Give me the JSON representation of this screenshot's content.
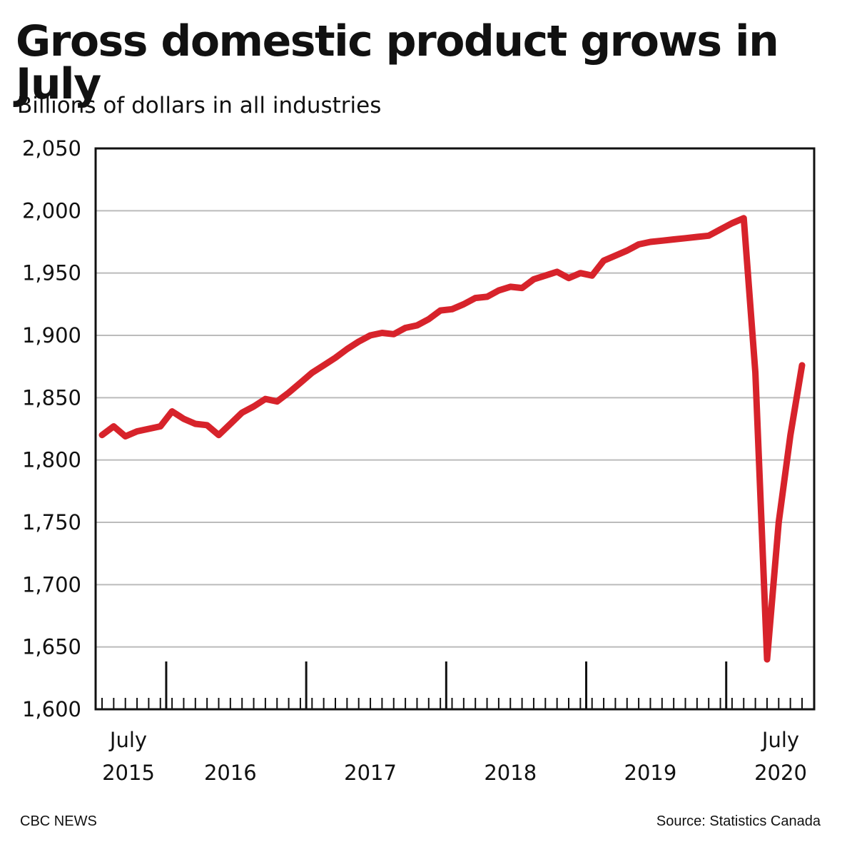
{
  "title": "Gross domestic product grows in July",
  "subtitle": "Billions of dollars in all industries",
  "footer": {
    "left": "CBC NEWS",
    "right": "Source: Statistics Canada"
  },
  "colors": {
    "line": "#d7232b",
    "grid": "#bbbbbb",
    "axis": "#111111"
  },
  "chart_data": {
    "type": "line",
    "title": "Gross domestic product grows in July",
    "ylabel": "Billions of dollars in all industries",
    "ylim": [
      1600,
      2050
    ],
    "yticks": [
      1600,
      1650,
      1700,
      1750,
      1800,
      1850,
      1900,
      1950,
      2000,
      2050
    ],
    "ytick_labels": [
      "1,600",
      "1,650",
      "1,700",
      "1,750",
      "1,800",
      "1,850",
      "1,900",
      "1,950",
      "2,000",
      "2,050"
    ],
    "grid": true,
    "x_start": "2015-07",
    "x_end": "2020-07",
    "x_tick_labels": [
      {
        "month": "2015-07",
        "line1": "July",
        "line2": "2015"
      },
      {
        "month": "2016-06",
        "line1": "",
        "line2": "2016"
      },
      {
        "month": "2017-06",
        "line1": "",
        "line2": "2017"
      },
      {
        "month": "2018-06",
        "line1": "",
        "line2": "2018"
      },
      {
        "month": "2019-06",
        "line1": "",
        "line2": "2019"
      },
      {
        "month": "2020-07",
        "line1": "July",
        "line2": "2020"
      }
    ],
    "series": [
      {
        "x": [
          "2015-07",
          "2015-08",
          "2015-09",
          "2015-10",
          "2015-11",
          "2015-12",
          "2016-01",
          "2016-02",
          "2016-03",
          "2016-04",
          "2016-05",
          "2016-06",
          "2016-07",
          "2016-08",
          "2016-09",
          "2016-10",
          "2016-11",
          "2016-12",
          "2017-01",
          "2017-02",
          "2017-03",
          "2017-04",
          "2017-05",
          "2017-06",
          "2017-07",
          "2017-08",
          "2017-09",
          "2017-10",
          "2017-11",
          "2017-12",
          "2018-01",
          "2018-02",
          "2018-03",
          "2018-04",
          "2018-05",
          "2018-06",
          "2018-07",
          "2018-08",
          "2018-09",
          "2018-10",
          "2018-11",
          "2018-12",
          "2019-01",
          "2019-02",
          "2019-03",
          "2019-04",
          "2019-05",
          "2019-06",
          "2019-07",
          "2019-08",
          "2019-09",
          "2019-10",
          "2019-11",
          "2019-12",
          "2020-01",
          "2020-02",
          "2020-03",
          "2020-04",
          "2020-05",
          "2020-06",
          "2020-07"
        ],
        "values": [
          1820,
          1827,
          1819,
          1823,
          1825,
          1827,
          1839,
          1833,
          1829,
          1828,
          1820,
          1829,
          1838,
          1843,
          1849,
          1847,
          1854,
          1862,
          1870,
          1876,
          1882,
          1889,
          1895,
          1900,
          1902,
          1901,
          1906,
          1908,
          1913,
          1920,
          1921,
          1925,
          1930,
          1931,
          1936,
          1939,
          1938,
          1945,
          1948,
          1951,
          1946,
          1950,
          1948,
          1960,
          1964,
          1968,
          1973,
          1975,
          1976,
          1977,
          1978,
          1979,
          1980,
          1985,
          1990,
          1994,
          1870,
          1640,
          1750,
          1820,
          1876
        ]
      }
    ]
  }
}
